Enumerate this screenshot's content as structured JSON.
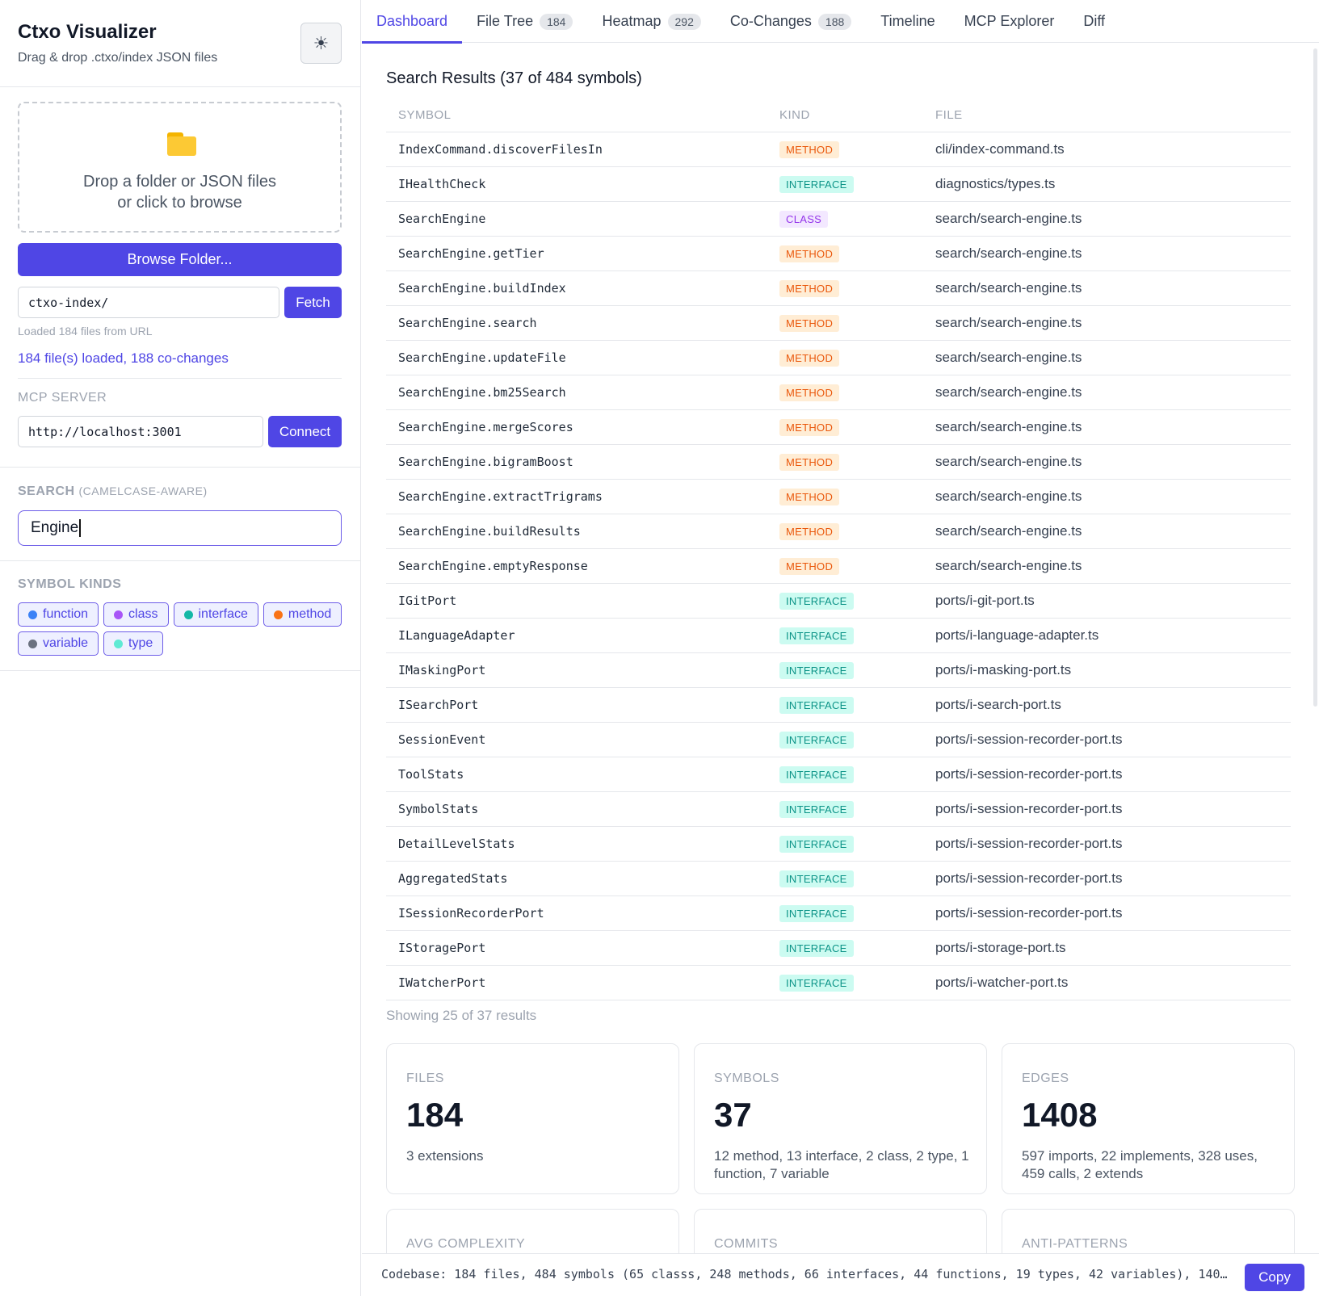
{
  "app": {
    "title": "Ctxo Visualizer",
    "subtitle": "Drag & drop .ctxo/index JSON files",
    "theme_icon": "sun-icon"
  },
  "sidebar": {
    "dropzone": {
      "icon": "folder-icon",
      "line1": "Drop a folder or JSON files",
      "line2": "or click to browse"
    },
    "browse_label": "Browse Folder...",
    "url_value": "ctxo-index/",
    "fetch_label": "Fetch",
    "loaded_url_text": "Loaded 184 files from URL",
    "loaded_status": "184 file(s) loaded, 188 co-changes",
    "mcp_label": "MCP SERVER",
    "mcp_value": "http://localhost:3001",
    "connect_label": "Connect",
    "search_label": "SEARCH",
    "search_hint": "(CAMELCASE-AWARE)",
    "search_value": "Engine",
    "kinds_label": "SYMBOL KINDS",
    "kinds": [
      {
        "label": "function",
        "color": "#3b82f6"
      },
      {
        "label": "class",
        "color": "#a855f7"
      },
      {
        "label": "interface",
        "color": "#14b8a6"
      },
      {
        "label": "method",
        "color": "#f97316"
      },
      {
        "label": "variable",
        "color": "#6b7280"
      },
      {
        "label": "type",
        "color": "#5eead4"
      }
    ]
  },
  "tabs": [
    {
      "label": "Dashboard",
      "count": null,
      "active": true
    },
    {
      "label": "File Tree",
      "count": "184"
    },
    {
      "label": "Heatmap",
      "count": "292"
    },
    {
      "label": "Co-Changes",
      "count": "188"
    },
    {
      "label": "Timeline",
      "count": null
    },
    {
      "label": "MCP Explorer",
      "count": null
    },
    {
      "label": "Diff",
      "count": null
    }
  ],
  "results": {
    "title": "Search Results (37 of 484 symbols)",
    "columns": [
      "SYMBOL",
      "KIND",
      "FILE"
    ],
    "rows": [
      {
        "symbol": "IndexCommand.discoverFilesIn",
        "kind": "METHOD",
        "file": "cli/index-command.ts"
      },
      {
        "symbol": "IHealthCheck",
        "kind": "INTERFACE",
        "file": "diagnostics/types.ts"
      },
      {
        "symbol": "SearchEngine",
        "kind": "CLASS",
        "file": "search/search-engine.ts"
      },
      {
        "symbol": "SearchEngine.getTier",
        "kind": "METHOD",
        "file": "search/search-engine.ts"
      },
      {
        "symbol": "SearchEngine.buildIndex",
        "kind": "METHOD",
        "file": "search/search-engine.ts"
      },
      {
        "symbol": "SearchEngine.search",
        "kind": "METHOD",
        "file": "search/search-engine.ts"
      },
      {
        "symbol": "SearchEngine.updateFile",
        "kind": "METHOD",
        "file": "search/search-engine.ts"
      },
      {
        "symbol": "SearchEngine.bm25Search",
        "kind": "METHOD",
        "file": "search/search-engine.ts"
      },
      {
        "symbol": "SearchEngine.mergeScores",
        "kind": "METHOD",
        "file": "search/search-engine.ts"
      },
      {
        "symbol": "SearchEngine.bigramBoost",
        "kind": "METHOD",
        "file": "search/search-engine.ts"
      },
      {
        "symbol": "SearchEngine.extractTrigrams",
        "kind": "METHOD",
        "file": "search/search-engine.ts"
      },
      {
        "symbol": "SearchEngine.buildResults",
        "kind": "METHOD",
        "file": "search/search-engine.ts"
      },
      {
        "symbol": "SearchEngine.emptyResponse",
        "kind": "METHOD",
        "file": "search/search-engine.ts"
      },
      {
        "symbol": "IGitPort",
        "kind": "INTERFACE",
        "file": "ports/i-git-port.ts"
      },
      {
        "symbol": "ILanguageAdapter",
        "kind": "INTERFACE",
        "file": "ports/i-language-adapter.ts"
      },
      {
        "symbol": "IMaskingPort",
        "kind": "INTERFACE",
        "file": "ports/i-masking-port.ts"
      },
      {
        "symbol": "ISearchPort",
        "kind": "INTERFACE",
        "file": "ports/i-search-port.ts"
      },
      {
        "symbol": "SessionEvent",
        "kind": "INTERFACE",
        "file": "ports/i-session-recorder-port.ts"
      },
      {
        "symbol": "ToolStats",
        "kind": "INTERFACE",
        "file": "ports/i-session-recorder-port.ts"
      },
      {
        "symbol": "SymbolStats",
        "kind": "INTERFACE",
        "file": "ports/i-session-recorder-port.ts"
      },
      {
        "symbol": "DetailLevelStats",
        "kind": "INTERFACE",
        "file": "ports/i-session-recorder-port.ts"
      },
      {
        "symbol": "AggregatedStats",
        "kind": "INTERFACE",
        "file": "ports/i-session-recorder-port.ts"
      },
      {
        "symbol": "ISessionRecorderPort",
        "kind": "INTERFACE",
        "file": "ports/i-session-recorder-port.ts"
      },
      {
        "symbol": "IStoragePort",
        "kind": "INTERFACE",
        "file": "ports/i-storage-port.ts"
      },
      {
        "symbol": "IWatcherPort",
        "kind": "INTERFACE",
        "file": "ports/i-watcher-port.ts"
      }
    ],
    "showing": "Showing 25 of 37 results"
  },
  "stats": [
    {
      "label": "FILES",
      "value": "184",
      "sub": "3 extensions"
    },
    {
      "label": "SYMBOLS",
      "value": "37",
      "sub": "12 method, 13 interface, 2 class, 2 type, 1 function, 7 variable"
    },
    {
      "label": "EDGES",
      "value": "1408",
      "sub": "597 imports, 22 implements, 328 uses, 459 calls, 2 extends"
    }
  ],
  "stats_row2": [
    {
      "label": "AVG COMPLEXITY"
    },
    {
      "label": "COMMITS"
    },
    {
      "label": "ANTI-PATTERNS"
    }
  ],
  "bottom": {
    "summary": "Codebase: 184 files, 484 symbols (65 classs, 248 methods, 66 interfaces, 44 functions, 19 types, 42 variables), 140…",
    "copy_label": "Copy"
  }
}
